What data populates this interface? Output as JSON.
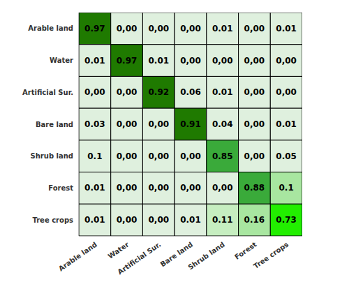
{
  "chart_data": {
    "type": "heatmap",
    "categories": [
      "Arable land",
      "Water",
      "Artificial Sur.",
      "Bare land",
      "Shrub land",
      "Forest",
      "Tree crops"
    ],
    "values": [
      [
        0.97,
        0.0,
        0.0,
        0.0,
        0.01,
        0.0,
        0.01
      ],
      [
        0.01,
        0.97,
        0.01,
        0.0,
        0.0,
        0.0,
        0.0
      ],
      [
        0.0,
        0.0,
        0.92,
        0.06,
        0.01,
        0.0,
        0.0
      ],
      [
        0.03,
        0.0,
        0.0,
        0.91,
        0.04,
        0.0,
        0.01
      ],
      [
        0.1,
        0.0,
        0.0,
        0.0,
        0.85,
        0.0,
        0.05
      ],
      [
        0.01,
        0.0,
        0.0,
        0.0,
        0.0,
        0.88,
        0.1
      ],
      [
        0.01,
        0.0,
        0.0,
        0.01,
        0.11,
        0.16,
        0.73
      ]
    ],
    "value_labels": [
      [
        "0.97",
        "0,00",
        "0,00",
        "0,00",
        "0.01",
        "0,00",
        "0.01"
      ],
      [
        "0.01",
        "0.97",
        "0.01",
        "0,00",
        "0,00",
        "0,00",
        "0,00"
      ],
      [
        "0,00",
        "0,00",
        "0.92",
        "0.06",
        "0.01",
        "0,00",
        "0,00"
      ],
      [
        "0.03",
        "0,00",
        "0,00",
        "0.91",
        "0.04",
        "0,00",
        "0.01"
      ],
      [
        "0.1",
        "0,00",
        "0,00",
        "0,00",
        "0.85",
        "0,00",
        "0.05"
      ],
      [
        "0.01",
        "0,00",
        "0,00",
        "0,00",
        "0,00",
        "0.88",
        "0.1"
      ],
      [
        "0.01",
        "0,00",
        "0,00",
        "0.01",
        "0.11",
        "0.16",
        "0.73"
      ]
    ],
    "colors": [
      [
        "#1f7a00",
        "#dff0de",
        "#dff0de",
        "#dff0de",
        "#dff0de",
        "#dff0de",
        "#dff0de"
      ],
      [
        "#dff0de",
        "#1f7a00",
        "#dff0de",
        "#dff0de",
        "#dff0de",
        "#dff0de",
        "#dff0de"
      ],
      [
        "#dff0de",
        "#dff0de",
        "#1f7a00",
        "#dff0de",
        "#dff0de",
        "#dff0de",
        "#dff0de"
      ],
      [
        "#dff0de",
        "#dff0de",
        "#dff0de",
        "#1f7a00",
        "#dff0de",
        "#dff0de",
        "#dff0de"
      ],
      [
        "#dff0de",
        "#dff0de",
        "#dff0de",
        "#dff0de",
        "#3aaa3a",
        "#dff0de",
        "#dff0de"
      ],
      [
        "#dff0de",
        "#dff0de",
        "#dff0de",
        "#dff0de",
        "#dff0de",
        "#3aaa3a",
        "#a8e6a0"
      ],
      [
        "#dff0de",
        "#dff0de",
        "#dff0de",
        "#dff0de",
        "#c6eec0",
        "#a8e6a0",
        "#22ee00"
      ]
    ],
    "data_labels": true
  }
}
